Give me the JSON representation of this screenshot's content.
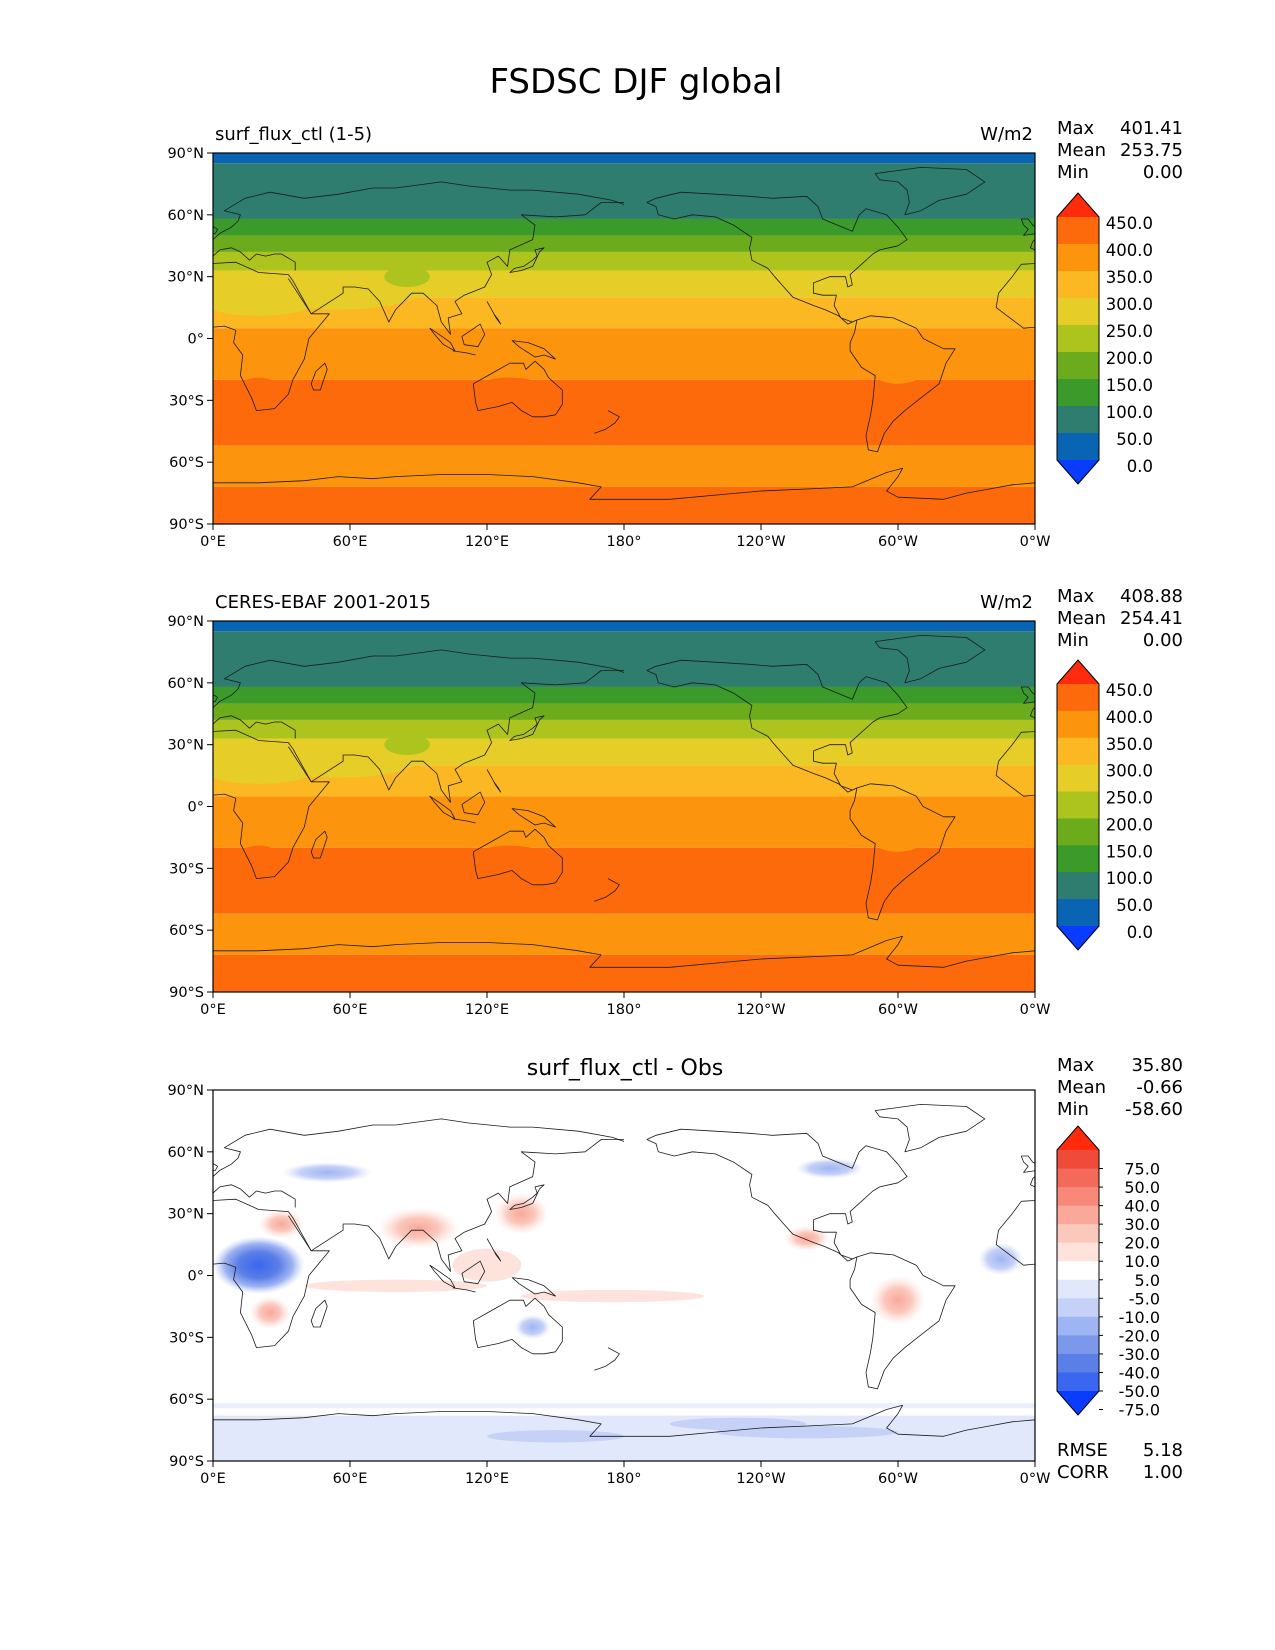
{
  "figure": {
    "title": "FSDSC DJF global"
  },
  "axes": {
    "lat_ticks": [
      "90°N",
      "60°N",
      "30°N",
      "0°",
      "30°S",
      "60°S",
      "90°S"
    ],
    "lon_ticks": [
      "0°E",
      "60°E",
      "120°E",
      "180°",
      "120°W",
      "60°W",
      "0°W"
    ]
  },
  "colors": {
    "abs_levels": [
      "#0a3cff",
      "#0a64b4",
      "#2e7d6f",
      "#3a9a2a",
      "#6cab1c",
      "#aec41e",
      "#e6cd28",
      "#fbb822",
      "#fd940e",
      "#fd6a0c",
      "#ff2b0c"
    ],
    "diff_levels": [
      "#0a3cff",
      "#3a66f0",
      "#5a7fe6",
      "#7b98ea",
      "#9fb4f2",
      "#c5d1f7",
      "#e2e8fb",
      "#ffffff",
      "#fde3dc",
      "#fbc8bc",
      "#f9a89a",
      "#f7887a",
      "#f46a5a",
      "#f04a3a",
      "#ff2b0c"
    ]
  },
  "panels": [
    {
      "title_left": "surf_flux_ctl (1-5)",
      "units": "W/m2",
      "stats": [
        {
          "label": "Max",
          "value": "401.41"
        },
        {
          "label": "Mean",
          "value": "253.75"
        },
        {
          "label": "Min",
          "value": "0.00"
        }
      ],
      "colorbar_labels": [
        "450.0",
        "400.0",
        "350.0",
        "300.0",
        "250.0",
        "200.0",
        "150.0",
        "100.0",
        "50.0",
        "0.0"
      ]
    },
    {
      "title_left": "CERES-EBAF 2001-2015",
      "units": "W/m2",
      "stats": [
        {
          "label": "Max",
          "value": "408.88"
        },
        {
          "label": "Mean",
          "value": "254.41"
        },
        {
          "label": "Min",
          "value": "0.00"
        }
      ],
      "colorbar_labels": [
        "450.0",
        "400.0",
        "350.0",
        "300.0",
        "250.0",
        "200.0",
        "150.0",
        "100.0",
        "50.0",
        "0.0"
      ]
    },
    {
      "title_center": "surf_flux_ctl - Obs",
      "stats": [
        {
          "label": "Max",
          "value": "35.80"
        },
        {
          "label": "Mean",
          "value": "-0.66"
        },
        {
          "label": "Min",
          "value": "-58.60"
        }
      ],
      "colorbar_labels": [
        "75.0",
        "50.0",
        "40.0",
        "30.0",
        "20.0",
        "10.0",
        "5.0",
        "-5.0",
        "-10.0",
        "-20.0",
        "-30.0",
        "-40.0",
        "-50.0",
        "-75.0"
      ],
      "footer_stats": [
        {
          "label": "RMSE",
          "value": "5.18"
        },
        {
          "label": "CORR",
          "value": "1.00"
        }
      ]
    }
  ],
  "chart_data": [
    {
      "type": "heatmap",
      "title": "surf_flux_ctl (1-5)",
      "units": "W/m2",
      "levels": [
        0,
        50,
        100,
        150,
        200,
        250,
        300,
        350,
        400,
        450
      ],
      "lat_bands": [
        {
          "lat_top": 90,
          "lat_bottom": 85,
          "value": 25
        },
        {
          "lat_top": 85,
          "lat_bottom": 58,
          "value": 75
        },
        {
          "lat_top": 58,
          "lat_bottom": 50,
          "value": 125
        },
        {
          "lat_top": 50,
          "lat_bottom": 42,
          "value": 175
        },
        {
          "lat_top": 42,
          "lat_bottom": 33,
          "value": 225
        },
        {
          "lat_top": 33,
          "lat_bottom": 20,
          "value": 275
        },
        {
          "lat_top": 20,
          "lat_bottom": 5,
          "value": 325
        },
        {
          "lat_top": 5,
          "lat_bottom": -20,
          "value": 375
        },
        {
          "lat_top": -20,
          "lat_bottom": -52,
          "value": 425
        },
        {
          "lat_top": -52,
          "lat_bottom": -72,
          "value": 375
        },
        {
          "lat_top": -72,
          "lat_bottom": -90,
          "value": 425
        }
      ]
    },
    {
      "type": "heatmap",
      "title": "CERES-EBAF 2001-2015",
      "units": "W/m2",
      "levels": [
        0,
        50,
        100,
        150,
        200,
        250,
        300,
        350,
        400,
        450
      ],
      "lat_bands": [
        {
          "lat_top": 90,
          "lat_bottom": 85,
          "value": 25
        },
        {
          "lat_top": 85,
          "lat_bottom": 58,
          "value": 75
        },
        {
          "lat_top": 58,
          "lat_bottom": 50,
          "value": 125
        },
        {
          "lat_top": 50,
          "lat_bottom": 42,
          "value": 175
        },
        {
          "lat_top": 42,
          "lat_bottom": 33,
          "value": 225
        },
        {
          "lat_top": 33,
          "lat_bottom": 20,
          "value": 275
        },
        {
          "lat_top": 20,
          "lat_bottom": 5,
          "value": 325
        },
        {
          "lat_top": 5,
          "lat_bottom": -20,
          "value": 375
        },
        {
          "lat_top": -20,
          "lat_bottom": -52,
          "value": 425
        },
        {
          "lat_top": -52,
          "lat_bottom": -72,
          "value": 375
        },
        {
          "lat_top": -72,
          "lat_bottom": -90,
          "value": 425
        }
      ]
    },
    {
      "type": "heatmap",
      "title": "surf_flux_ctl - Obs",
      "levels": [
        -75,
        -50,
        -40,
        -30,
        -20,
        -10,
        -5,
        5,
        10,
        20,
        30,
        40,
        50,
        75
      ],
      "background_value": 0,
      "anomalies": [
        {
          "lon": 20,
          "lat": 5,
          "value": -30
        },
        {
          "lon": 20,
          "lat": 5,
          "value": -45
        },
        {
          "lon": 12,
          "lat": 2,
          "value": -15
        },
        {
          "lon": 140,
          "lat": -25,
          "value": -15
        },
        {
          "lon": 90,
          "lat": 25,
          "value": 15
        },
        {
          "lon": 80,
          "lat": 20,
          "value": 7
        },
        {
          "lon": 135,
          "lat": 32,
          "value": 7
        },
        {
          "lon": 160,
          "lat": -8,
          "value": 7
        },
        {
          "lon": 55,
          "lat": -8,
          "value": 7
        },
        {
          "lon": 25,
          "lat": -15,
          "value": 7
        },
        {
          "lon": 300,
          "lat": -10,
          "value": 7
        },
        {
          "lon": 255,
          "lat": 20,
          "value": 7
        },
        {
          "lon": 30,
          "lat": 25,
          "value": 7
        },
        {
          "lon": 50,
          "lat": 50,
          "value": -7
        },
        {
          "lon": 270,
          "lat": 52,
          "value": -7
        },
        {
          "lon": 345,
          "lat": 10,
          "value": -7
        },
        {
          "lon": 180,
          "lat": -76,
          "value": -7
        },
        {
          "lon": 180,
          "lat": -65,
          "value": -7
        }
      ]
    }
  ]
}
